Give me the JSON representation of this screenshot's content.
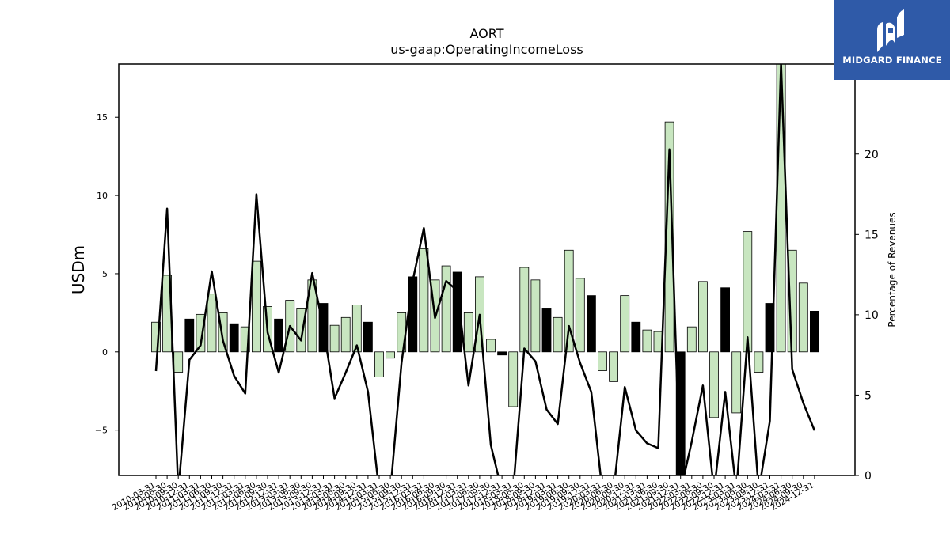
{
  "brand": {
    "name": "MIDGARD FINANCE",
    "colors": {
      "background": "#2f5aa8",
      "text": "#ffffff"
    }
  },
  "chart_data": {
    "type": "bar",
    "title": "AORT",
    "subtitle": "us-gaap:OperatingIncomeLoss",
    "ylabel": "USDm",
    "y2label": "Percentage of Revenues",
    "ylim": [
      -7.9,
      18.4
    ],
    "y2lim": [
      0,
      25.6
    ],
    "yticks": [
      -5,
      0,
      5,
      10,
      15
    ],
    "y2ticks": [
      0,
      5,
      10,
      15,
      20
    ],
    "grid": false,
    "colors": {
      "bar": "#c8e6c0",
      "bar_highlight": "#000000",
      "line": "#000000"
    },
    "categories": [
      "2010-03-31",
      "2010-06-30",
      "2010-09-30",
      "2010-12-31",
      "2011-03-31",
      "2011-06-30",
      "2011-09-30",
      "2011-12-31",
      "2012-03-31",
      "2012-06-30",
      "2012-09-30",
      "2012-12-31",
      "2013-03-31",
      "2013-06-30",
      "2013-09-30",
      "2013-12-31",
      "2014-03-31",
      "2014-06-30",
      "2014-09-30",
      "2014-12-31",
      "2015-03-31",
      "2015-06-30",
      "2015-09-30",
      "2015-12-31",
      "2016-03-31",
      "2016-06-30",
      "2016-09-30",
      "2016-12-31",
      "2017-03-31",
      "2017-06-30",
      "2017-09-30",
      "2017-12-31",
      "2018-03-31",
      "2018-06-30",
      "2018-09-30",
      "2018-12-31",
      "2019-03-31",
      "2019-06-30",
      "2019-09-30",
      "2019-12-31",
      "2020-03-31",
      "2020-06-30",
      "2020-09-30",
      "2020-12-31",
      "2021-03-31",
      "2021-06-30",
      "2021-09-30",
      "2021-12-31",
      "2022-03-31",
      "2022-06-30",
      "2022-09-30",
      "2022-12-31",
      "2023-03-31",
      "2023-06-30",
      "2023-09-30",
      "2023-12-31",
      "2024-03-31",
      "2024-06-30",
      "2024-09-30",
      "2024-12-31"
    ],
    "x_tick_labels": [
      "2010-03-31",
      "2010-06-30",
      "2010-09-30",
      "2010-12-31",
      "2011-03-31",
      "2011-06-30",
      "2011-09-30",
      "2011-12-31",
      "2012-03-31",
      "2012-06-30",
      "2012-09-30",
      "2012-12-31",
      "2013-03-31",
      "2013-06-30",
      "2013-09-30",
      "2013-12-31",
      "2014-03-31",
      "2014-06-30",
      "2014-09-30",
      "2014-12-31",
      "2015-03-31",
      "2015-06-30",
      "2015-09-30",
      "2015-12-31",
      "2016-03-31",
      "2016-06-30",
      "2016-09-30",
      "2016-12-31",
      "2017-03-31",
      "2017-06-30",
      "2017-09-30",
      "2017-12-31",
      "2018-03-31",
      "2018-06-30",
      "2018-09-30",
      "2018-12-31",
      "2019-03-31",
      "2019-06-30",
      "2019-09-30",
      "2019-12-31",
      "2020-03-31",
      "2020-06-30",
      "2020-09-30",
      "2020-12-31",
      "2021-03-31",
      "2021-06-30",
      "2021-09-30",
      "2021-12-31",
      "2022-03-31",
      "2022-06-30",
      "2022-09-30",
      "2022-12-31",
      "2023-03-31",
      "2023-06-30",
      "2023-09-30",
      "2023-12-31",
      "2024-03-31",
      "2024-06-30",
      "2024-09-30",
      "2024-12-31"
    ],
    "series": [
      {
        "type": "bar",
        "values": [
          1.9,
          4.9,
          -1.3,
          2.1,
          2.4,
          3.7,
          2.5,
          1.8,
          1.6,
          5.8,
          2.9,
          2.1,
          3.3,
          2.8,
          4.6,
          3.1,
          1.7,
          2.2,
          3.0,
          1.9,
          -1.6,
          -0.4,
          2.5,
          4.8,
          6.6,
          4.6,
          5.5,
          5.1,
          2.5,
          4.8,
          0.8,
          -0.2,
          -3.5,
          5.4,
          4.6,
          2.8,
          2.2,
          6.5,
          4.7,
          3.6,
          -1.2,
          -1.9,
          3.6,
          1.9,
          1.4,
          1.3,
          14.7,
          -7.9,
          1.6,
          4.5,
          -4.2,
          4.1,
          -3.9,
          7.7,
          -1.3,
          3.1,
          18.4,
          6.5,
          4.4,
          2.6
        ],
        "highlighted": [
          false,
          false,
          false,
          true,
          false,
          false,
          false,
          true,
          false,
          false,
          false,
          true,
          false,
          false,
          false,
          true,
          false,
          false,
          false,
          true,
          false,
          false,
          false,
          true,
          false,
          false,
          false,
          true,
          false,
          false,
          false,
          true,
          false,
          false,
          false,
          true,
          false,
          false,
          false,
          true,
          false,
          false,
          false,
          true,
          false,
          false,
          false,
          true,
          false,
          false,
          false,
          true,
          false,
          false,
          false,
          true,
          false,
          false,
          false,
          true
        ]
      },
      {
        "type": "line",
        "axis": "right",
        "values": [
          6.5,
          16.6,
          -1.0,
          7.2,
          8.1,
          12.7,
          8.4,
          6.2,
          5.1,
          17.5,
          8.9,
          6.4,
          9.3,
          8.4,
          12.6,
          9.2,
          4.8,
          6.4,
          8.1,
          5.2,
          -1.0,
          -1.0,
          7.0,
          12.1,
          15.4,
          9.8,
          12.1,
          11.5,
          5.6,
          10.0,
          1.9,
          -1.0,
          -1.0,
          7.9,
          7.1,
          4.1,
          3.2,
          9.3,
          7.0,
          5.2,
          -1.0,
          -1.0,
          5.5,
          2.8,
          2.0,
          1.7,
          20.3,
          -1.0,
          2.1,
          5.6,
          -1.0,
          5.2,
          -1.0,
          8.6,
          -1.0,
          3.4,
          25.6,
          6.6,
          4.5,
          2.8
        ]
      }
    ]
  }
}
